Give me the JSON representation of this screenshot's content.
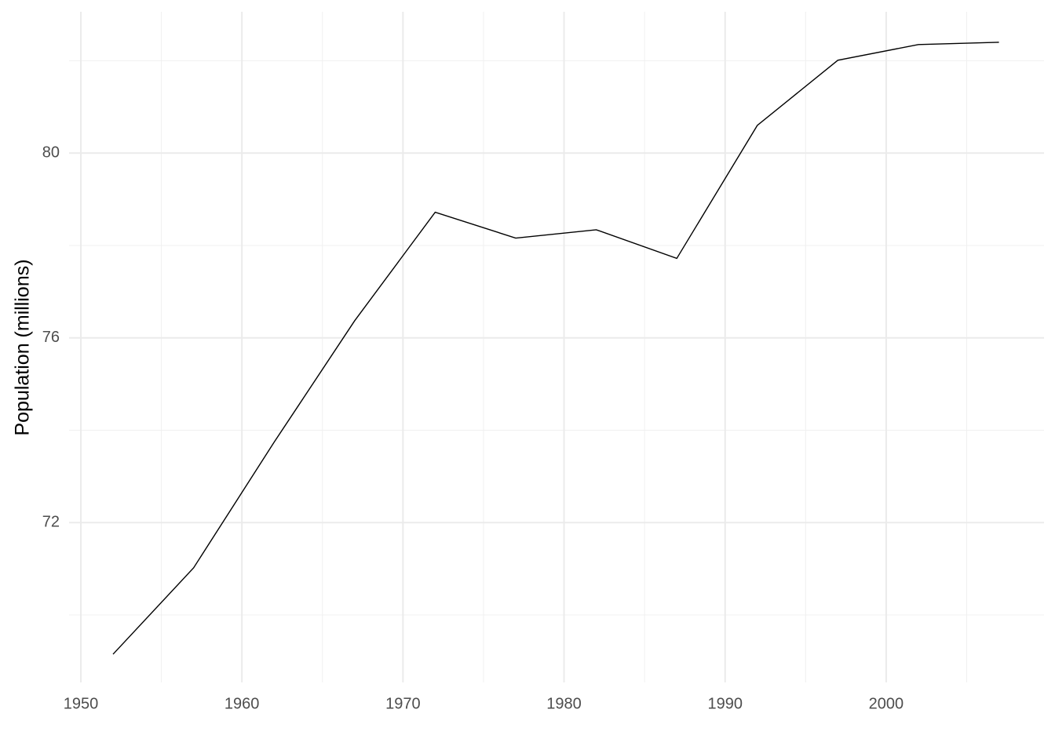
{
  "chart_data": {
    "type": "line",
    "y_label": "Population (millions)",
    "x": [
      1952,
      1957,
      1962,
      1967,
      1972,
      1977,
      1982,
      1987,
      1992,
      1997,
      2002,
      2007
    ],
    "series": [
      {
        "color": "#000000",
        "values": [
          69.15,
          71.02,
          73.74,
          76.37,
          78.72,
          78.16,
          78.34,
          77.72,
          80.6,
          82.01,
          82.35,
          82.4
        ]
      }
    ],
    "xlim": [
      1949.27,
      2009.8
    ],
    "xticks": [
      1950,
      1960,
      1970,
      1980,
      1990,
      2000
    ],
    "ylim": [
      68.54,
      83.06
    ],
    "yticks": [
      72,
      76,
      80
    ],
    "minor_xgrid": [
      1955,
      1965,
      1975,
      1985,
      1995,
      2005
    ],
    "minor_ygrid": [
      70,
      74,
      78,
      82
    ],
    "grid": true
  }
}
